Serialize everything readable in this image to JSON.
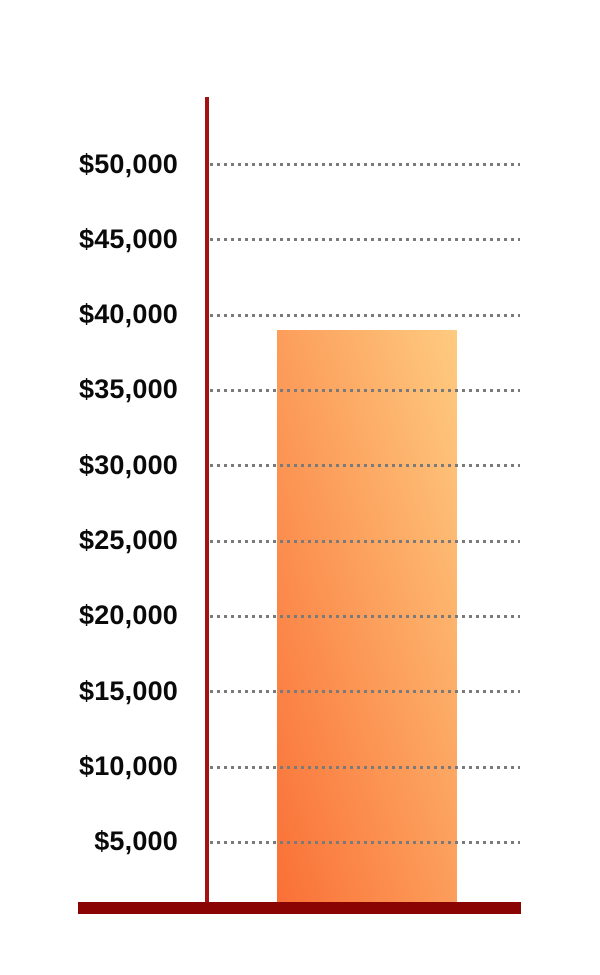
{
  "chart_data": {
    "type": "bar",
    "title": "",
    "xlabel": "",
    "ylabel": "",
    "categories": [
      ""
    ],
    "values": [
      39000
    ],
    "ylim": [
      0,
      55000
    ],
    "y_ticks": [
      "$50,000",
      "$45,000",
      "$40,000",
      "$35,000",
      "$30,000",
      "$25,000",
      "$20,000",
      "$15,000",
      "$10,000",
      "$5,000"
    ],
    "y_tick_values": [
      50000,
      45000,
      40000,
      35000,
      30000,
      25000,
      20000,
      15000,
      10000,
      5000
    ],
    "grid": "horizontal-dotted",
    "legend": "none",
    "colors": {
      "bar_gradient_bottom_left": "#fa7036",
      "bar_gradient_top_right": "#fecb80",
      "y_axis_line": "#a31212",
      "baseline": "#8b0404",
      "gridline": "#7a7a7a",
      "tick_label": "#0a0a0a",
      "background": "#ffffff"
    }
  }
}
